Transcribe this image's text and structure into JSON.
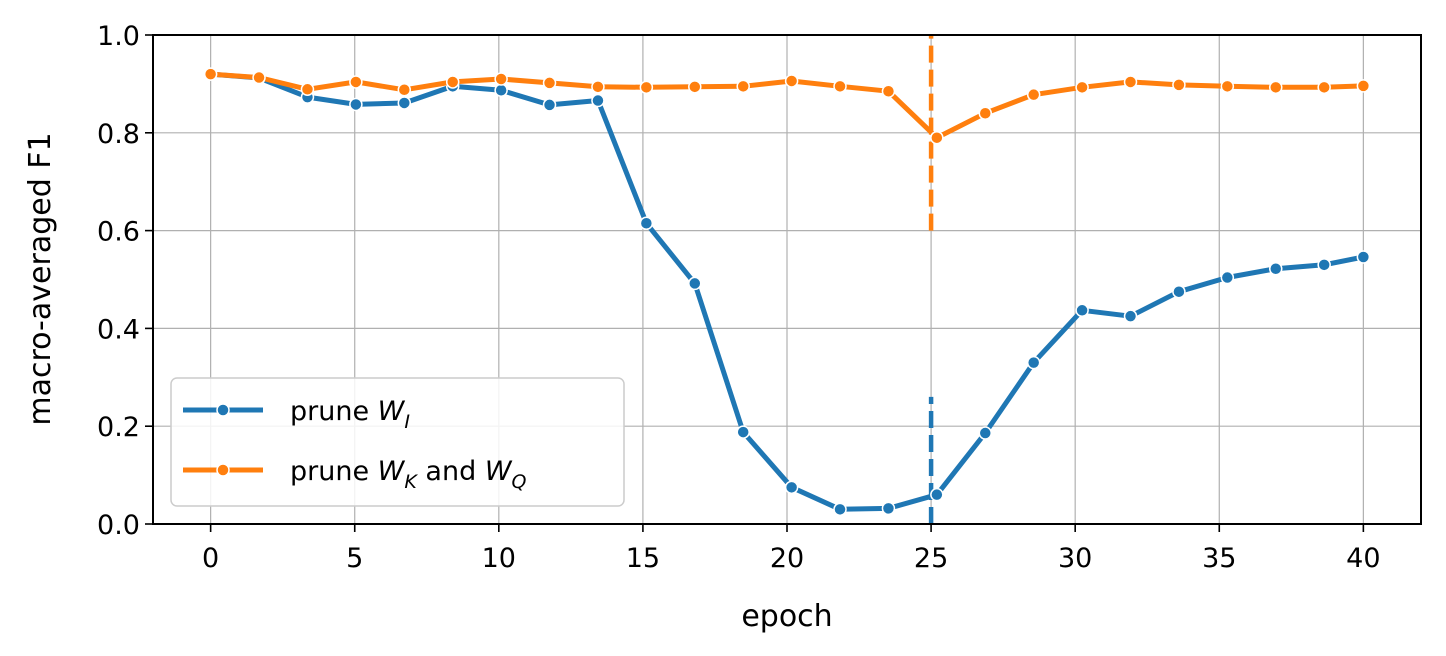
{
  "chart_data": {
    "type": "line",
    "xlabel": "epoch",
    "ylabel": "macro-averaged F1",
    "xlim": [
      -2,
      42
    ],
    "ylim": [
      0.0,
      1.0
    ],
    "xticks": [
      0,
      5,
      10,
      15,
      20,
      25,
      30,
      35,
      40
    ],
    "yticks": [
      0.0,
      0.2,
      0.4,
      0.6,
      0.8,
      1.0
    ],
    "xtick_labels": [
      "0",
      "5",
      "10",
      "15",
      "20",
      "25",
      "30",
      "35",
      "40"
    ],
    "ytick_labels": [
      "0.0",
      "0.2",
      "0.4",
      "0.6",
      "0.8",
      "1.0"
    ],
    "grid": true,
    "legend_position": "lower-left",
    "x": [
      0,
      1.68,
      3.36,
      5.04,
      6.72,
      8.4,
      10.08,
      11.76,
      13.44,
      15.12,
      16.8,
      18.48,
      20.16,
      21.84,
      23.52,
      25.2,
      26.88,
      28.56,
      30.24,
      31.92,
      33.6,
      35.28,
      36.96,
      38.64,
      40.0
    ],
    "series": [
      {
        "name_main": "prune ",
        "name_var": "W",
        "name_sub": "I",
        "color": "#1f77b4",
        "values": [
          0.92,
          0.912,
          0.873,
          0.858,
          0.861,
          0.895,
          0.887,
          0.857,
          0.866,
          0.615,
          0.492,
          0.188,
          0.075,
          0.03,
          0.032,
          0.06,
          0.186,
          0.33,
          0.437,
          0.425,
          0.475,
          0.504,
          0.522,
          0.53,
          0.546
        ],
        "vline": {
          "x": 25,
          "y": [
            0.0,
            0.26
          ]
        }
      },
      {
        "name_main": "prune ",
        "name_var": "W",
        "name_sub": "K",
        "name_mid": " and ",
        "name_var2": "W",
        "name_sub2": "Q",
        "color": "#ff7f0e",
        "values": [
          0.92,
          0.913,
          0.889,
          0.904,
          0.888,
          0.904,
          0.91,
          0.902,
          0.894,
          0.893,
          0.894,
          0.895,
          0.906,
          0.895,
          0.885,
          0.79,
          0.84,
          0.878,
          0.893,
          0.904,
          0.898,
          0.895,
          0.893,
          0.893,
          0.896
        ],
        "vline": {
          "x": 25,
          "y": [
            0.6,
            1.0
          ]
        }
      }
    ]
  }
}
